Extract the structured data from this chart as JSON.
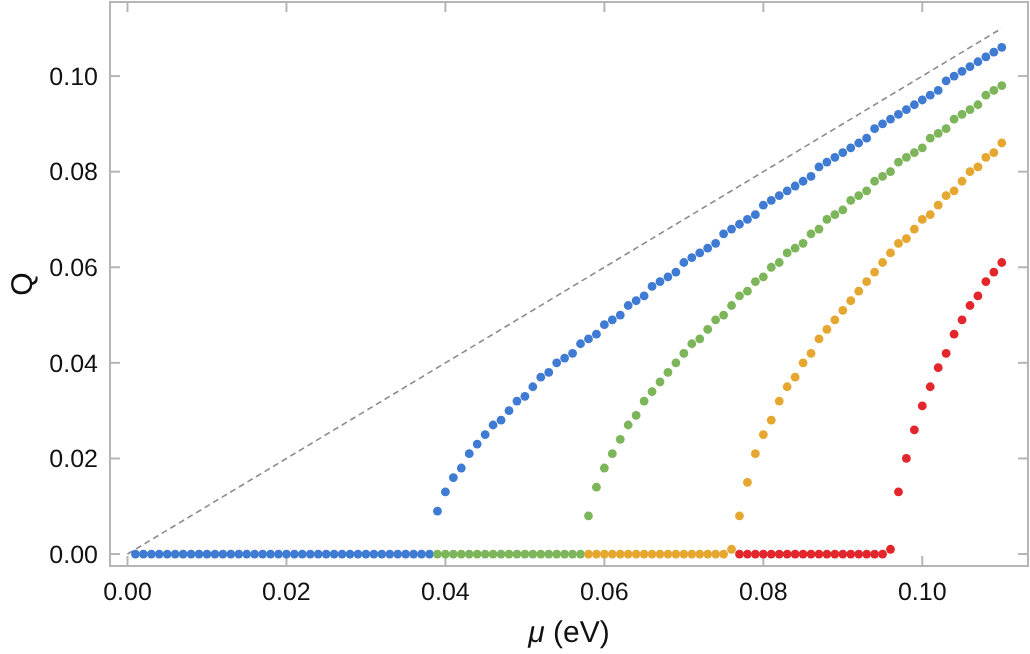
{
  "chart_data": {
    "type": "scatter",
    "xlabel": "μ (eV)",
    "ylabel": "Q",
    "xlim": [
      -0.0022,
      0.1133
    ],
    "ylim": [
      -0.0025,
      0.1155
    ],
    "xticks": [
      {
        "value": 0,
        "label": "0.00"
      },
      {
        "value": 0.02,
        "label": "0.02"
      },
      {
        "value": 0.04,
        "label": "0.04"
      },
      {
        "value": 0.06,
        "label": "0.06"
      },
      {
        "value": 0.08,
        "label": "0.08"
      },
      {
        "value": 0.1,
        "label": "0.10"
      }
    ],
    "yticks": [
      {
        "value": 0,
        "label": "0.00"
      },
      {
        "value": 0.02,
        "label": "0.02"
      },
      {
        "value": 0.04,
        "label": "0.04"
      },
      {
        "value": 0.06,
        "label": "0.06"
      },
      {
        "value": 0.08,
        "label": "0.08"
      },
      {
        "value": 0.1,
        "label": "0.10"
      }
    ],
    "grid": false,
    "marker": "circle",
    "series": [
      {
        "type": "line",
        "color": "#8c8c8c",
        "line_style": "dashed",
        "marker": "none",
        "x": [
          0,
          0.11
        ],
        "values": [
          0,
          0.11
        ]
      },
      {
        "color": "#3f7ad3",
        "x": [
          0.001,
          0.002,
          0.003,
          0.004,
          0.005,
          0.006,
          0.007,
          0.008,
          0.009,
          0.01,
          0.011,
          0.012,
          0.013,
          0.014,
          0.015,
          0.016,
          0.017,
          0.018,
          0.019,
          0.02,
          0.021,
          0.022,
          0.023,
          0.024,
          0.025,
          0.026,
          0.027,
          0.028,
          0.029,
          0.03,
          0.031,
          0.032,
          0.033,
          0.034,
          0.035,
          0.036,
          0.037,
          0.038,
          0.039,
          0.04,
          0.041,
          0.042,
          0.043,
          0.044,
          0.045,
          0.046,
          0.047,
          0.048,
          0.049,
          0.05,
          0.051,
          0.052,
          0.053,
          0.054,
          0.055,
          0.056,
          0.057,
          0.058,
          0.059,
          0.06,
          0.061,
          0.062,
          0.063,
          0.064,
          0.065,
          0.066,
          0.067,
          0.068,
          0.069,
          0.07,
          0.071,
          0.072,
          0.073,
          0.074,
          0.075,
          0.076,
          0.077,
          0.078,
          0.079,
          0.08,
          0.081,
          0.082,
          0.083,
          0.084,
          0.085,
          0.086,
          0.087,
          0.088,
          0.089,
          0.09,
          0.091,
          0.092,
          0.093,
          0.094,
          0.095,
          0.096,
          0.097,
          0.098,
          0.099,
          0.1,
          0.101,
          0.102,
          0.103,
          0.104,
          0.105,
          0.106,
          0.107,
          0.108,
          0.109,
          0.11
        ],
        "values": [
          0,
          0,
          0,
          0,
          0,
          0,
          0,
          0,
          0,
          0,
          0,
          0,
          0,
          0,
          0,
          0,
          0,
          0,
          0,
          0,
          0,
          0,
          0,
          0,
          0,
          0,
          0,
          0,
          0,
          0,
          0,
          0,
          0,
          0,
          0,
          0,
          0,
          0,
          0.009,
          0.013,
          0.016,
          0.018,
          0.021,
          0.023,
          0.025,
          0.027,
          0.028,
          0.03,
          0.032,
          0.033,
          0.035,
          0.037,
          0.038,
          0.04,
          0.041,
          0.042,
          0.044,
          0.045,
          0.046,
          0.048,
          0.049,
          0.05,
          0.052,
          0.053,
          0.054,
          0.056,
          0.057,
          0.058,
          0.059,
          0.061,
          0.062,
          0.063,
          0.064,
          0.065,
          0.067,
          0.068,
          0.069,
          0.07,
          0.071,
          0.073,
          0.074,
          0.075,
          0.076,
          0.077,
          0.078,
          0.079,
          0.081,
          0.082,
          0.083,
          0.084,
          0.085,
          0.086,
          0.087,
          0.089,
          0.09,
          0.091,
          0.092,
          0.093,
          0.094,
          0.095,
          0.096,
          0.097,
          0.099,
          0.1,
          0.101,
          0.102,
          0.103,
          0.104,
          0.105,
          0.106
        ]
      },
      {
        "color": "#7db55a",
        "x": [
          0.039,
          0.04,
          0.041,
          0.042,
          0.043,
          0.044,
          0.045,
          0.046,
          0.047,
          0.048,
          0.049,
          0.05,
          0.051,
          0.052,
          0.053,
          0.054,
          0.055,
          0.056,
          0.057,
          0.058,
          0.059,
          0.06,
          0.061,
          0.062,
          0.063,
          0.064,
          0.065,
          0.066,
          0.067,
          0.068,
          0.069,
          0.07,
          0.071,
          0.072,
          0.073,
          0.074,
          0.075,
          0.076,
          0.077,
          0.078,
          0.079,
          0.08,
          0.081,
          0.082,
          0.083,
          0.084,
          0.085,
          0.086,
          0.087,
          0.088,
          0.089,
          0.09,
          0.091,
          0.092,
          0.093,
          0.094,
          0.095,
          0.096,
          0.097,
          0.098,
          0.099,
          0.1,
          0.101,
          0.102,
          0.103,
          0.104,
          0.105,
          0.106,
          0.107,
          0.108,
          0.109,
          0.11
        ],
        "values": [
          0,
          0,
          0,
          0,
          0,
          0,
          0,
          0,
          0,
          0,
          0,
          0,
          0,
          0,
          0,
          0,
          0,
          0,
          0,
          0.008,
          0.014,
          0.018,
          0.021,
          0.024,
          0.027,
          0.029,
          0.032,
          0.034,
          0.036,
          0.038,
          0.04,
          0.042,
          0.044,
          0.045,
          0.047,
          0.049,
          0.05,
          0.052,
          0.054,
          0.055,
          0.057,
          0.058,
          0.06,
          0.061,
          0.063,
          0.064,
          0.065,
          0.067,
          0.068,
          0.07,
          0.071,
          0.072,
          0.074,
          0.075,
          0.076,
          0.078,
          0.079,
          0.08,
          0.082,
          0.083,
          0.084,
          0.085,
          0.087,
          0.088,
          0.089,
          0.091,
          0.092,
          0.093,
          0.094,
          0.096,
          0.097,
          0.098
        ]
      },
      {
        "color": "#e6a731",
        "x": [
          0.058,
          0.059,
          0.06,
          0.061,
          0.062,
          0.063,
          0.064,
          0.065,
          0.066,
          0.067,
          0.068,
          0.069,
          0.07,
          0.071,
          0.072,
          0.073,
          0.074,
          0.075,
          0.076,
          0.077,
          0.078,
          0.079,
          0.08,
          0.081,
          0.082,
          0.083,
          0.084,
          0.085,
          0.086,
          0.087,
          0.088,
          0.089,
          0.09,
          0.091,
          0.092,
          0.093,
          0.094,
          0.095,
          0.096,
          0.097,
          0.098,
          0.099,
          0.1,
          0.101,
          0.102,
          0.103,
          0.104,
          0.105,
          0.106,
          0.107,
          0.108,
          0.109,
          0.11
        ],
        "values": [
          0,
          0,
          0,
          0,
          0,
          0,
          0,
          0,
          0,
          0,
          0,
          0,
          0,
          0,
          0,
          0,
          0,
          0,
          0.001,
          0.008,
          0.015,
          0.021,
          0.025,
          0.028,
          0.032,
          0.035,
          0.037,
          0.04,
          0.042,
          0.045,
          0.047,
          0.049,
          0.051,
          0.053,
          0.055,
          0.057,
          0.059,
          0.061,
          0.063,
          0.065,
          0.066,
          0.068,
          0.07,
          0.071,
          0.073,
          0.075,
          0.076,
          0.078,
          0.08,
          0.081,
          0.083,
          0.084,
          0.086
        ]
      },
      {
        "color": "#e3262b",
        "x": [
          0.077,
          0.078,
          0.079,
          0.08,
          0.081,
          0.082,
          0.083,
          0.084,
          0.085,
          0.086,
          0.087,
          0.088,
          0.089,
          0.09,
          0.091,
          0.092,
          0.093,
          0.094,
          0.095,
          0.096,
          0.097,
          0.098,
          0.099,
          0.1,
          0.101,
          0.102,
          0.103,
          0.104,
          0.105,
          0.106,
          0.107,
          0.108,
          0.109,
          0.11
        ],
        "values": [
          0,
          0,
          0,
          0,
          0,
          0,
          0,
          0,
          0,
          0,
          0,
          0,
          0,
          0,
          0,
          0,
          0,
          0,
          0,
          0.001,
          0.013,
          0.02,
          0.026,
          0.031,
          0.035,
          0.039,
          0.042,
          0.046,
          0.049,
          0.052,
          0.054,
          0.057,
          0.059,
          0.061
        ]
      }
    ]
  }
}
